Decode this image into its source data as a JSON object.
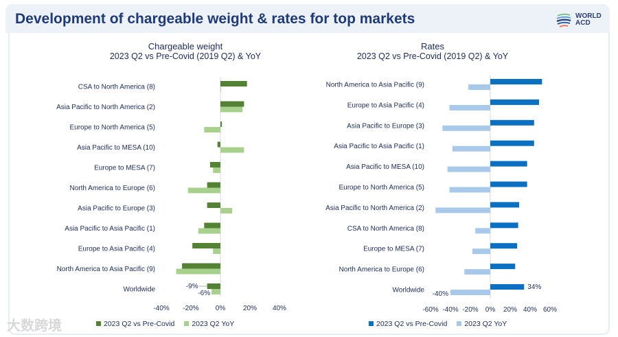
{
  "header": {
    "title": "Development of chargeable weight & rates for top markets",
    "logo_line1": "WORLD",
    "logo_line2": "ACD"
  },
  "watermark": "大数跨境",
  "colors": {
    "weight_dark": "#548235",
    "weight_light": "#a9d18e",
    "rates_dark": "#0b6fc2",
    "rates_light": "#a9c9ea"
  },
  "chart_data": [
    {
      "type": "bar",
      "orientation": "horizontal",
      "title": "Chargeable weight",
      "subtitle": "2023 Q2 vs Pre-Covid (2019 Q2) & YoY",
      "xlim": [
        -40,
        40
      ],
      "ticks": [
        "-40%",
        "-20%",
        "0%",
        "20%",
        "40%"
      ],
      "tick_values": [
        -40,
        -20,
        0,
        20,
        40
      ],
      "categories": [
        "CSA to North America (8)",
        "Asia Pacific to North America (2)",
        "Europe to North America (5)",
        "Asia Pacific to MESA (10)",
        "Europe to MESA (7)",
        "North America to Europe (6)",
        "Asia Pacific to Europe (3)",
        "Asia Pacific to Asia Pacific (1)",
        "Europe to Asia Pacific (4)",
        "North America to Asia Pacific (9)",
        "Worldwide"
      ],
      "series": [
        {
          "name": "2023 Q2 vs Pre-Covid",
          "values": [
            18,
            16,
            1,
            -2,
            -7,
            -9,
            -9,
            -11,
            -19,
            -26,
            -9
          ]
        },
        {
          "name": "2023 Q2 YoY",
          "values": [
            0,
            15,
            -11,
            16,
            -5,
            -22,
            8,
            -15,
            -5,
            -30,
            -6
          ]
        }
      ],
      "data_labels": [
        "-9%",
        "-6%"
      ],
      "legend": "bottom"
    },
    {
      "type": "bar",
      "orientation": "horizontal",
      "title": "Rates",
      "subtitle": "2023 Q2 vs Pre-Covid (2019 Q2) & YoY",
      "xlim": [
        -60,
        60
      ],
      "ticks": [
        "-60%",
        "-40%",
        "-20%",
        "0%",
        "20%",
        "40%",
        "60%"
      ],
      "tick_values": [
        -60,
        -40,
        -20,
        0,
        20,
        40,
        60
      ],
      "categories": [
        "North America to Asia Pacific (9)",
        "Europe to Asia Pacific (4)",
        "Asia Pacific to Europe (3)",
        "Asia Pacific to Asia Pacific (1)",
        "Asia Pacific to MESA (10)",
        "Europe to North America (5)",
        "Asia Pacific to North America (2)",
        "CSA to North America (8)",
        "Europe to MESA (7)",
        "North America to Europe (6)",
        "Worldwide"
      ],
      "series": [
        {
          "name": "2023 Q2 vs Pre-Covid",
          "values": [
            52,
            49,
            44,
            44,
            37,
            37,
            29,
            28,
            27,
            25,
            34
          ]
        },
        {
          "name": "2023 Q2 YoY",
          "values": [
            -22,
            -41,
            -48,
            -38,
            -43,
            -41,
            -55,
            -15,
            -18,
            -26,
            -40
          ]
        }
      ],
      "data_labels": [
        "34%",
        "-40%"
      ],
      "legend": "bottom"
    }
  ]
}
